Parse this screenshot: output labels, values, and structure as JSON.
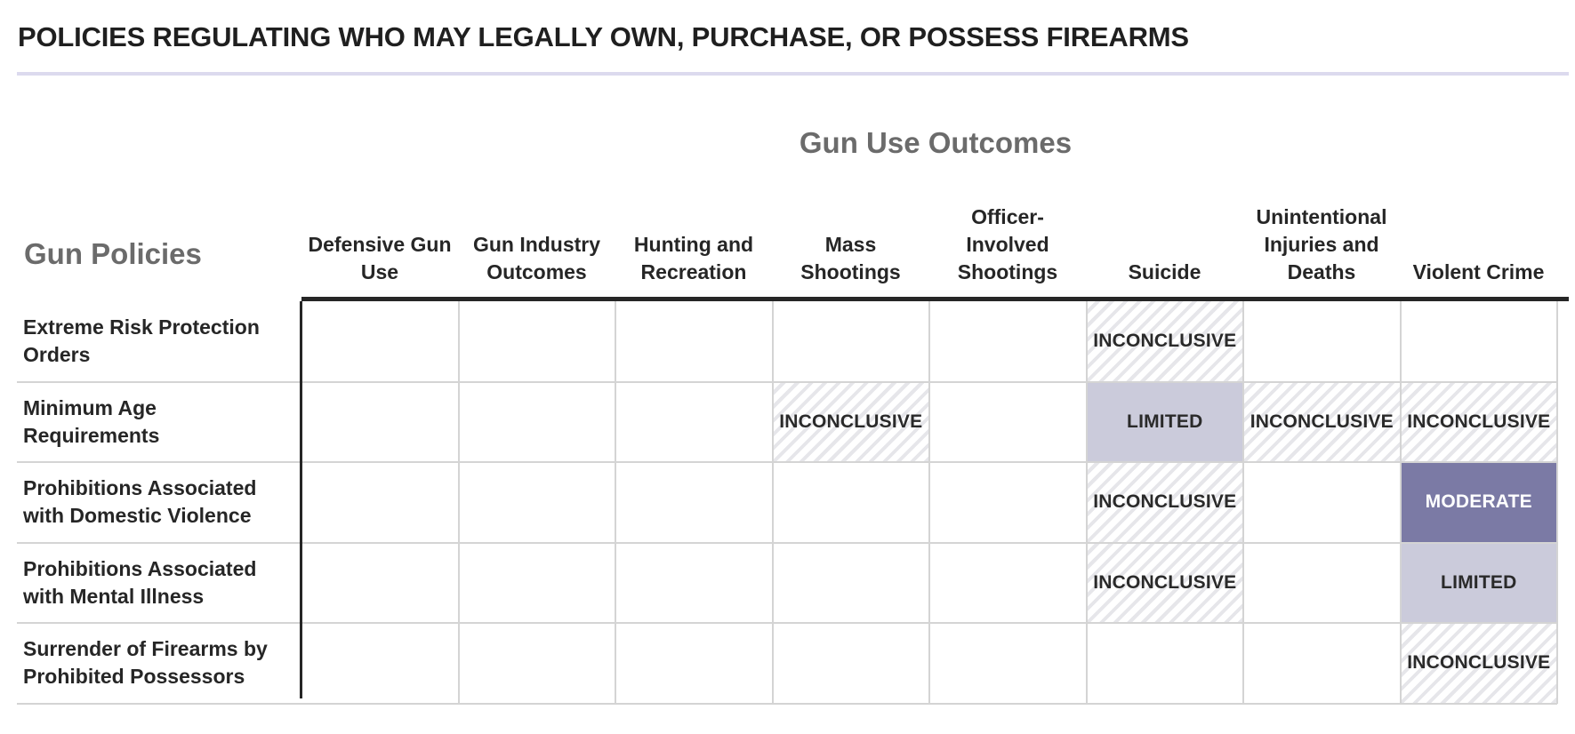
{
  "title": "POLICIES REGULATING WHO MAY LEGALLY OWN, PURCHASE, OR POSSESS FIREARMS",
  "outcomes_heading": "Gun Use Outcomes",
  "policies_heading": "Gun Policies",
  "colors": {
    "inconclusive": "#e6e6ea",
    "limited": "#cbcbdb",
    "moderate": "#7b7aa5",
    "header_rule": "#262626",
    "title_rule": "#dcdaee"
  },
  "chart_data": {
    "type": "table",
    "columns": [
      "Defensive Gun\nUse",
      "Gun Industry\nOutcomes",
      "Hunting and\nRecreation",
      "Mass\nShootings",
      "Officer-\nInvolved\nShootings",
      "Suicide",
      "Unintentional\nInjuries and\nDeaths",
      "Violent Crime"
    ],
    "rows": [
      "Extreme Risk Protection\nOrders",
      "Minimum Age\nRequirements",
      "Prohibitions Associated\nwith Domestic Violence",
      "Prohibitions Associated\nwith Mental Illness",
      "Surrender of Firearms by\nProhibited Possessors"
    ],
    "cells": [
      [
        "",
        "",
        "",
        "",
        "",
        "INCONCLUSIVE",
        "",
        ""
      ],
      [
        "",
        "",
        "",
        "INCONCLUSIVE",
        "",
        "LIMITED",
        "INCONCLUSIVE",
        "INCONCLUSIVE"
      ],
      [
        "",
        "",
        "",
        "",
        "",
        "INCONCLUSIVE",
        "",
        "MODERATE"
      ],
      [
        "",
        "",
        "",
        "",
        "",
        "INCONCLUSIVE",
        "",
        "LIMITED"
      ],
      [
        "",
        "",
        "",
        "",
        "",
        "",
        "",
        "INCONCLUSIVE"
      ]
    ]
  }
}
